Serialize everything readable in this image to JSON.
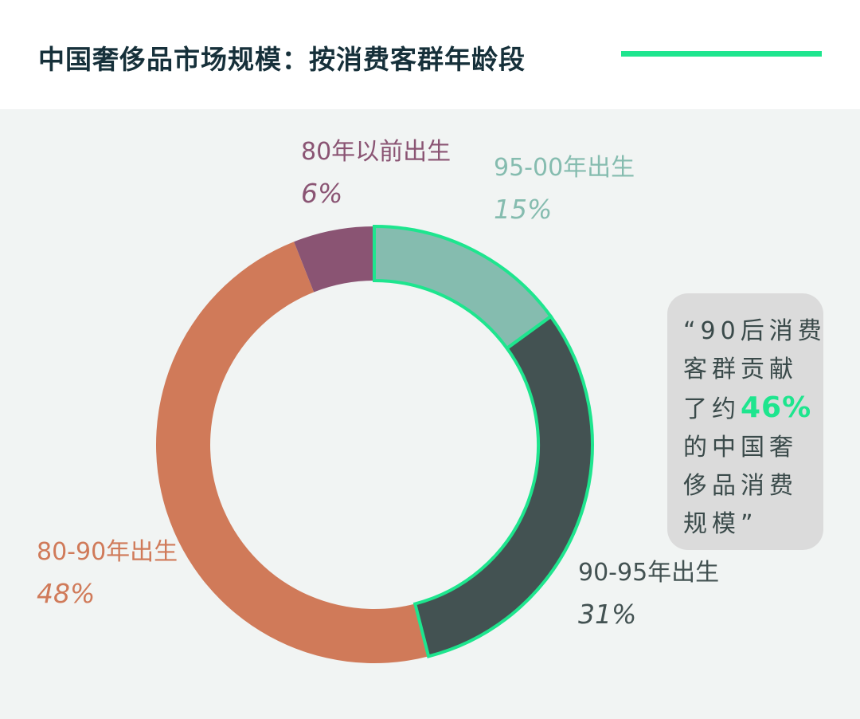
{
  "header": {
    "title": "中国奢侈品市场规模：按消费客群年龄段"
  },
  "chart_data": {
    "type": "pie",
    "style": "donut",
    "title": "中国奢侈品市场规模：按消费客群年龄段",
    "slices": [
      {
        "label": "95-00年出生",
        "value": 15,
        "value_label": "15%",
        "color": "#85bcaf",
        "highlighted": true
      },
      {
        "label": "90-95年出生",
        "value": 31,
        "value_label": "31%",
        "color": "#435252",
        "highlighted": true
      },
      {
        "label": "80-90年出生",
        "value": 48,
        "value_label": "48%",
        "color": "#d07a59",
        "highlighted": false
      },
      {
        "label": "80年以前出生",
        "value": 6,
        "value_label": "6%",
        "color": "#8a5473",
        "highlighted": false
      }
    ],
    "highlight_color": "#1ee58e"
  },
  "callout": {
    "lines": [
      "“90后消费",
      "客群贡献",
      "了约",
      "的中国奢",
      "侈品消费",
      "规模”"
    ],
    "highlight": "46%"
  },
  "colors": {
    "title": "#16303a",
    "accent": "#1ee58e",
    "panel_background": "#f1f4f3",
    "callout_background": "#dbdbdb"
  }
}
